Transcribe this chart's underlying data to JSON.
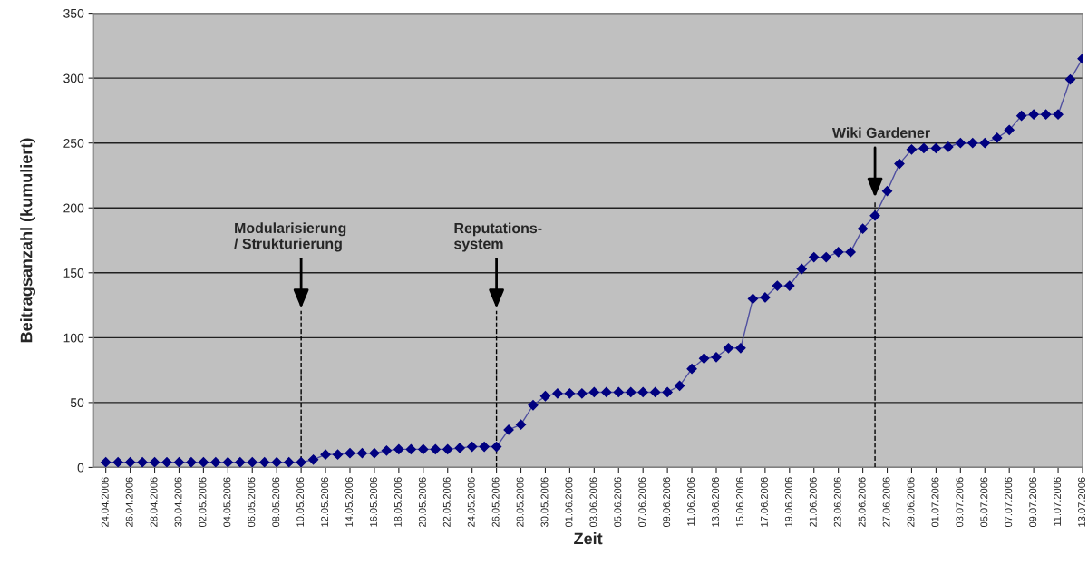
{
  "chart_data": {
    "type": "line",
    "xlabel": "Zeit",
    "ylabel": "Beitragsanzahl (kumuliert)",
    "x": [
      "2006-04-24",
      "2006-04-25",
      "2006-04-26",
      "2006-04-27",
      "2006-04-28",
      "2006-04-29",
      "2006-04-30",
      "2006-05-01",
      "2006-05-02",
      "2006-05-03",
      "2006-05-04",
      "2006-05-05",
      "2006-05-06",
      "2006-05-07",
      "2006-05-08",
      "2006-05-09",
      "2006-05-10",
      "2006-05-11",
      "2006-05-12",
      "2006-05-13",
      "2006-05-14",
      "2006-05-15",
      "2006-05-16",
      "2006-05-17",
      "2006-05-18",
      "2006-05-19",
      "2006-05-20",
      "2006-05-21",
      "2006-05-22",
      "2006-05-23",
      "2006-05-24",
      "2006-05-25",
      "2006-05-26",
      "2006-05-27",
      "2006-05-28",
      "2006-05-29",
      "2006-05-30",
      "2006-05-31",
      "2006-06-01",
      "2006-06-02",
      "2006-06-03",
      "2006-06-04",
      "2006-06-05",
      "2006-06-06",
      "2006-06-07",
      "2006-06-08",
      "2006-06-09",
      "2006-06-10",
      "2006-06-11",
      "2006-06-12",
      "2006-06-13",
      "2006-06-14",
      "2006-06-15",
      "2006-06-16",
      "2006-06-17",
      "2006-06-18",
      "2006-06-19",
      "2006-06-20",
      "2006-06-21",
      "2006-06-22",
      "2006-06-23",
      "2006-06-24",
      "2006-06-25",
      "2006-06-26",
      "2006-06-27",
      "2006-06-28",
      "2006-06-29",
      "2006-06-30",
      "2006-07-01",
      "2006-07-02",
      "2006-07-03",
      "2006-07-04",
      "2006-07-05",
      "2006-07-06",
      "2006-07-07",
      "2006-07-08",
      "2006-07-09",
      "2006-07-10",
      "2006-07-11",
      "2006-07-12",
      "2006-07-13"
    ],
    "series": [
      {
        "color": "#000080",
        "values": [
          4,
          4,
          4,
          4,
          4,
          4,
          4,
          4,
          4,
          4,
          4,
          4,
          4,
          4,
          4,
          4,
          4,
          6,
          10,
          10,
          11,
          11,
          11,
          13,
          14,
          14,
          14,
          14,
          14,
          15,
          16,
          16,
          16,
          29,
          33,
          48,
          55,
          57,
          57,
          57,
          58,
          58,
          58,
          58,
          58,
          58,
          58,
          63,
          76,
          84,
          85,
          92,
          92,
          130,
          131,
          140,
          140,
          153,
          162,
          162,
          166,
          166,
          184,
          194,
          213,
          234,
          245,
          246,
          246,
          247,
          250,
          250,
          250,
          254,
          260,
          271,
          272,
          272,
          272,
          299,
          315
        ]
      }
    ],
    "xlim": [
      "2006-04-23",
      "2006-07-13"
    ],
    "xticks": [
      {
        "value": "2006-04-24",
        "label": "24.04.2006"
      },
      {
        "value": "2006-04-26",
        "label": "26.04.2006"
      },
      {
        "value": "2006-04-28",
        "label": "28.04.2006"
      },
      {
        "value": "2006-04-30",
        "label": "30.04.2006"
      },
      {
        "value": "2006-05-02",
        "label": "02.05.2006"
      },
      {
        "value": "2006-05-04",
        "label": "04.05.2006"
      },
      {
        "value": "2006-05-06",
        "label": "06.05.2006"
      },
      {
        "value": "2006-05-08",
        "label": "08.05.2006"
      },
      {
        "value": "2006-05-10",
        "label": "10.05.2006"
      },
      {
        "value": "2006-05-12",
        "label": "12.05.2006"
      },
      {
        "value": "2006-05-14",
        "label": "14.05.2006"
      },
      {
        "value": "2006-05-16",
        "label": "16.05.2006"
      },
      {
        "value": "2006-05-18",
        "label": "18.05.2006"
      },
      {
        "value": "2006-05-20",
        "label": "20.05.2006"
      },
      {
        "value": "2006-05-22",
        "label": "22.05.2006"
      },
      {
        "value": "2006-05-24",
        "label": "24.05.2006"
      },
      {
        "value": "2006-05-26",
        "label": "26.05.2006"
      },
      {
        "value": "2006-05-28",
        "label": "28.05.2006"
      },
      {
        "value": "2006-05-30",
        "label": "30.05.2006"
      },
      {
        "value": "2006-06-01",
        "label": "01.06.2006"
      },
      {
        "value": "2006-06-03",
        "label": "03.06.2006"
      },
      {
        "value": "2006-06-05",
        "label": "05.06.2006"
      },
      {
        "value": "2006-06-07",
        "label": "07.06.2006"
      },
      {
        "value": "2006-06-09",
        "label": "09.06.2006"
      },
      {
        "value": "2006-06-11",
        "label": "11.06.2006"
      },
      {
        "value": "2006-06-13",
        "label": "13.06.2006"
      },
      {
        "value": "2006-06-15",
        "label": "15.06.2006"
      },
      {
        "value": "2006-06-17",
        "label": "17.06.2006"
      },
      {
        "value": "2006-06-19",
        "label": "19.06.2006"
      },
      {
        "value": "2006-06-21",
        "label": "21.06.2006"
      },
      {
        "value": "2006-06-23",
        "label": "23.06.2006"
      },
      {
        "value": "2006-06-25",
        "label": "25.06.2006"
      },
      {
        "value": "2006-06-27",
        "label": "27.06.2006"
      },
      {
        "value": "2006-06-29",
        "label": "29.06.2006"
      },
      {
        "value": "2006-07-01",
        "label": "01.07.2006"
      },
      {
        "value": "2006-07-03",
        "label": "03.07.2006"
      },
      {
        "value": "2006-07-05",
        "label": "05.07.2006"
      },
      {
        "value": "2006-07-07",
        "label": "07.07.2006"
      },
      {
        "value": "2006-07-09",
        "label": "09.07.2006"
      },
      {
        "value": "2006-07-11",
        "label": "11.07.2006"
      },
      {
        "value": "2006-07-13",
        "label": "13.07.2006"
      }
    ],
    "ylim": [
      0,
      350
    ],
    "yticks": [
      0,
      50,
      100,
      150,
      200,
      250,
      300,
      350
    ],
    "grid": "y",
    "marker": "diamond",
    "line_style": "solid",
    "ref_lines": [
      {
        "axis": "x",
        "value": "2006-05-10",
        "label": "Modularisierung\n/ Strukturierung",
        "line_style": "dashed"
      },
      {
        "axis": "x",
        "value": "2006-05-26",
        "label": "Reputations-\nsystem",
        "line_style": "dashed"
      },
      {
        "axis": "x",
        "value": "2006-06-26",
        "label": "Wiki Gardener",
        "line_style": "dashed"
      }
    ]
  }
}
